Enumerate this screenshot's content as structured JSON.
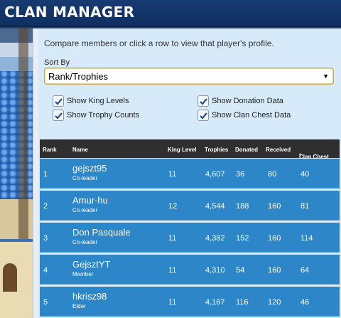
{
  "app": {
    "title": "CLAN MANAGER"
  },
  "intro": "Compare members or click a row to view that player's profile.",
  "sort": {
    "label": "Sort By",
    "selected": "Rank/Trophies"
  },
  "options": [
    {
      "label": "Show King Levels",
      "checked": true
    },
    {
      "label": "Show Donation Data",
      "checked": true
    },
    {
      "label": "Show Trophy Counts",
      "checked": true
    },
    {
      "label": "Show Clan Chest Data",
      "checked": true
    }
  ],
  "table": {
    "headers": {
      "rank": "Rank",
      "name": "Name",
      "king": "King Level",
      "trophies": "Trophies",
      "donated": "Donated",
      "received": "Received",
      "chest": "Clan Chest",
      "chest_mark": "*"
    },
    "rows": [
      {
        "rank": "1",
        "name": "gejszt95",
        "role": "Co-leader",
        "king": "11",
        "trophies": "4,607",
        "donated": "36",
        "received": "80",
        "chest": "40"
      },
      {
        "rank": "2",
        "name": "Amur-hu",
        "role": "Co-leader",
        "king": "12",
        "trophies": "4,544",
        "donated": "188",
        "received": "160",
        "chest": "81"
      },
      {
        "rank": "3",
        "name": "Don Pasquale",
        "role": "Co-leader",
        "king": "11",
        "trophies": "4,382",
        "donated": "152",
        "received": "160",
        "chest": "114"
      },
      {
        "rank": "4",
        "name": "GejsztYT",
        "role": "Member",
        "king": "11",
        "trophies": "4,310",
        "donated": "54",
        "received": "160",
        "chest": "64"
      },
      {
        "rank": "5",
        "name": "hkrisz98",
        "role": "Elder",
        "king": "11",
        "trophies": "4,167",
        "donated": "116",
        "received": "120",
        "chest": "46"
      }
    ]
  },
  "colors": {
    "header_bar": "#173a72",
    "row": "#2c86c8",
    "panel": "#d6eaf9",
    "table_head": "#2f2f2f"
  }
}
